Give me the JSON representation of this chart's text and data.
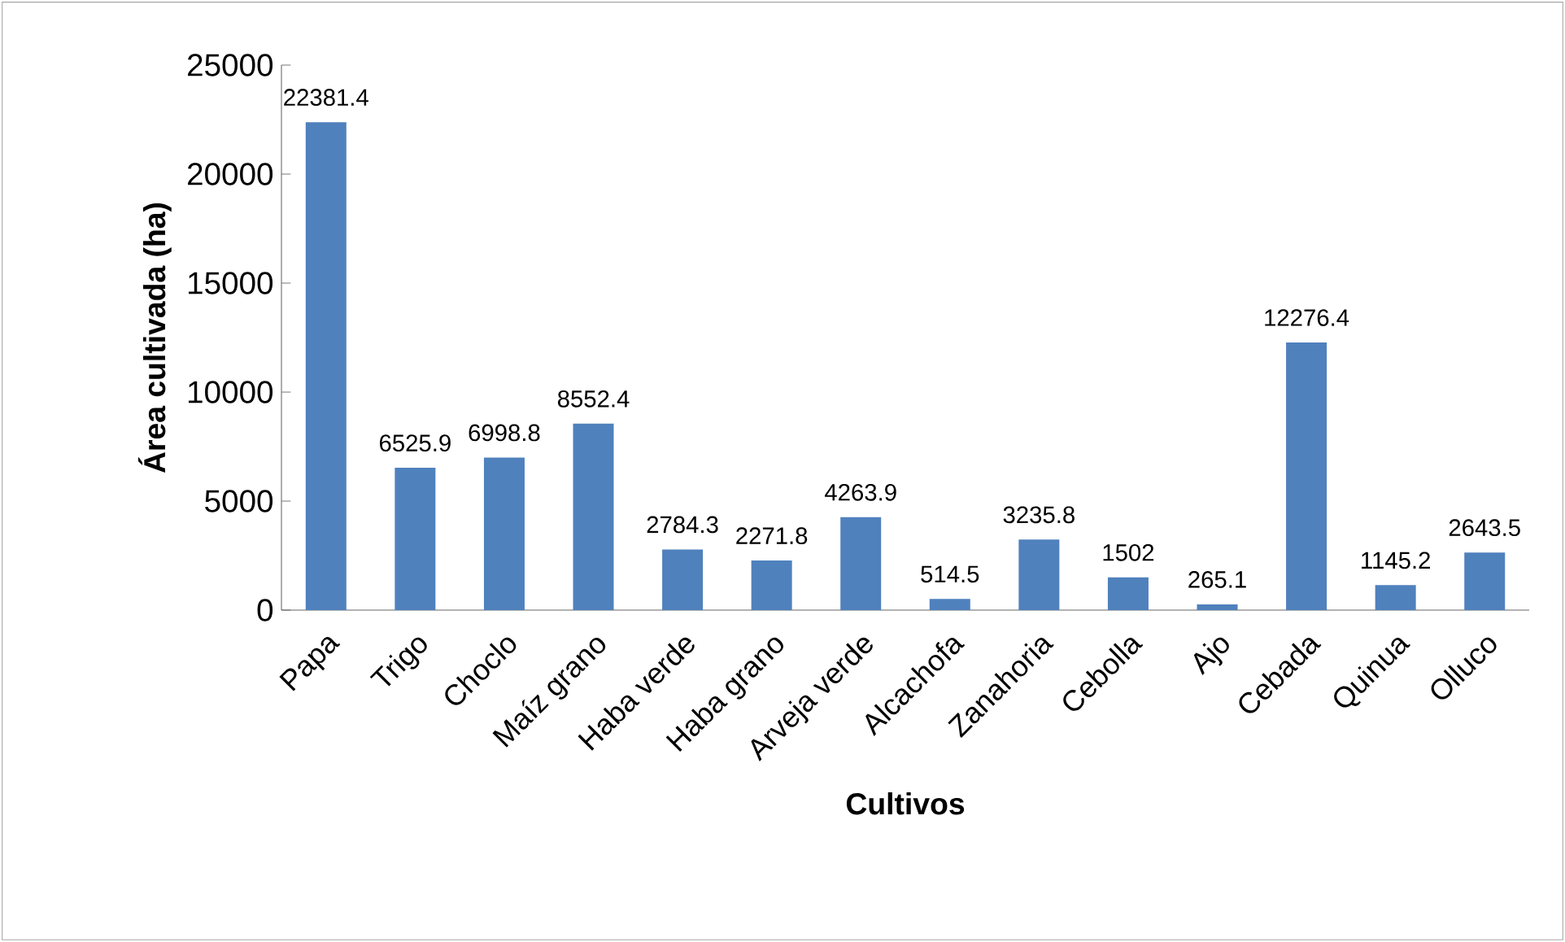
{
  "chart_data": {
    "type": "bar",
    "xlabel": "Cultivos",
    "ylabel": "Área cultivada (ha)",
    "categories": [
      "Papa",
      "Trigo",
      "Choclo",
      "Maíz grano",
      "Haba verde",
      "Haba grano",
      "Arveja verde",
      "Alcachofa",
      "Zanahoria",
      "Cebolla",
      "Ajo",
      "Cebada",
      "Quinua",
      "Olluco"
    ],
    "values": [
      22381.4,
      6525.9,
      6998.8,
      8552.4,
      2784.3,
      2271.8,
      4263.9,
      514.5,
      3235.8,
      1502,
      265.1,
      12276.4,
      1145.2,
      2643.5
    ],
    "color": "#4f81bd",
    "ylim": [
      0,
      25000
    ],
    "yticks": [
      0,
      5000,
      10000,
      15000,
      20000,
      25000
    ],
    "data_labels": true
  }
}
